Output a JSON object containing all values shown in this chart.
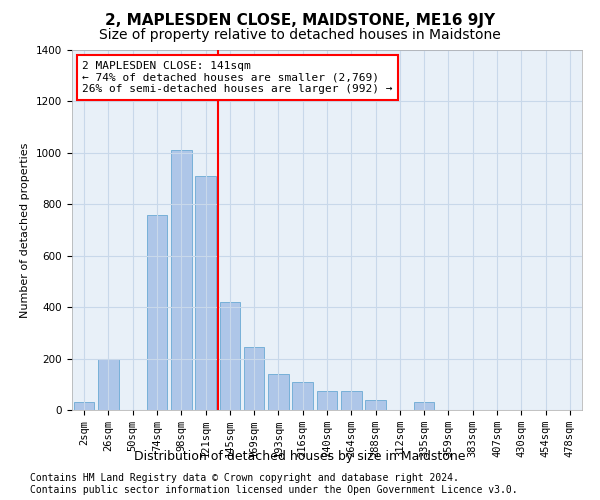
{
  "title": "2, MAPLESDEN CLOSE, MAIDSTONE, ME16 9JY",
  "subtitle": "Size of property relative to detached houses in Maidstone",
  "xlabel": "Distribution of detached houses by size in Maidstone",
  "ylabel": "Number of detached properties",
  "categories": [
    "2sqm",
    "26sqm",
    "50sqm",
    "74sqm",
    "98sqm",
    "121sqm",
    "145sqm",
    "169sqm",
    "193sqm",
    "216sqm",
    "240sqm",
    "264sqm",
    "288sqm",
    "312sqm",
    "335sqm",
    "359sqm",
    "383sqm",
    "407sqm",
    "430sqm",
    "454sqm",
    "478sqm"
  ],
  "bar_heights": [
    30,
    200,
    0,
    760,
    1010,
    910,
    420,
    245,
    140,
    110,
    75,
    75,
    40,
    0,
    30,
    0,
    0,
    0,
    0,
    0,
    0
  ],
  "bar_color": "#aec6e8",
  "bar_edge_color": "#6aaad4",
  "vline_x_index": 6,
  "vline_color": "red",
  "annotation_text": "2 MAPLESDEN CLOSE: 141sqm\n← 74% of detached houses are smaller (2,769)\n26% of semi-detached houses are larger (992) →",
  "annotation_box_color": "white",
  "annotation_box_edge_color": "red",
  "ylim": [
    0,
    1400
  ],
  "yticks": [
    0,
    200,
    400,
    600,
    800,
    1000,
    1200,
    1400
  ],
  "grid_color": "#c8d8ea",
  "background_color": "#e8f0f8",
  "footer_text": "Contains HM Land Registry data © Crown copyright and database right 2024.\nContains public sector information licensed under the Open Government Licence v3.0.",
  "title_fontsize": 11,
  "subtitle_fontsize": 10,
  "xlabel_fontsize": 9,
  "ylabel_fontsize": 8,
  "tick_fontsize": 7.5,
  "annotation_fontsize": 8,
  "footer_fontsize": 7
}
